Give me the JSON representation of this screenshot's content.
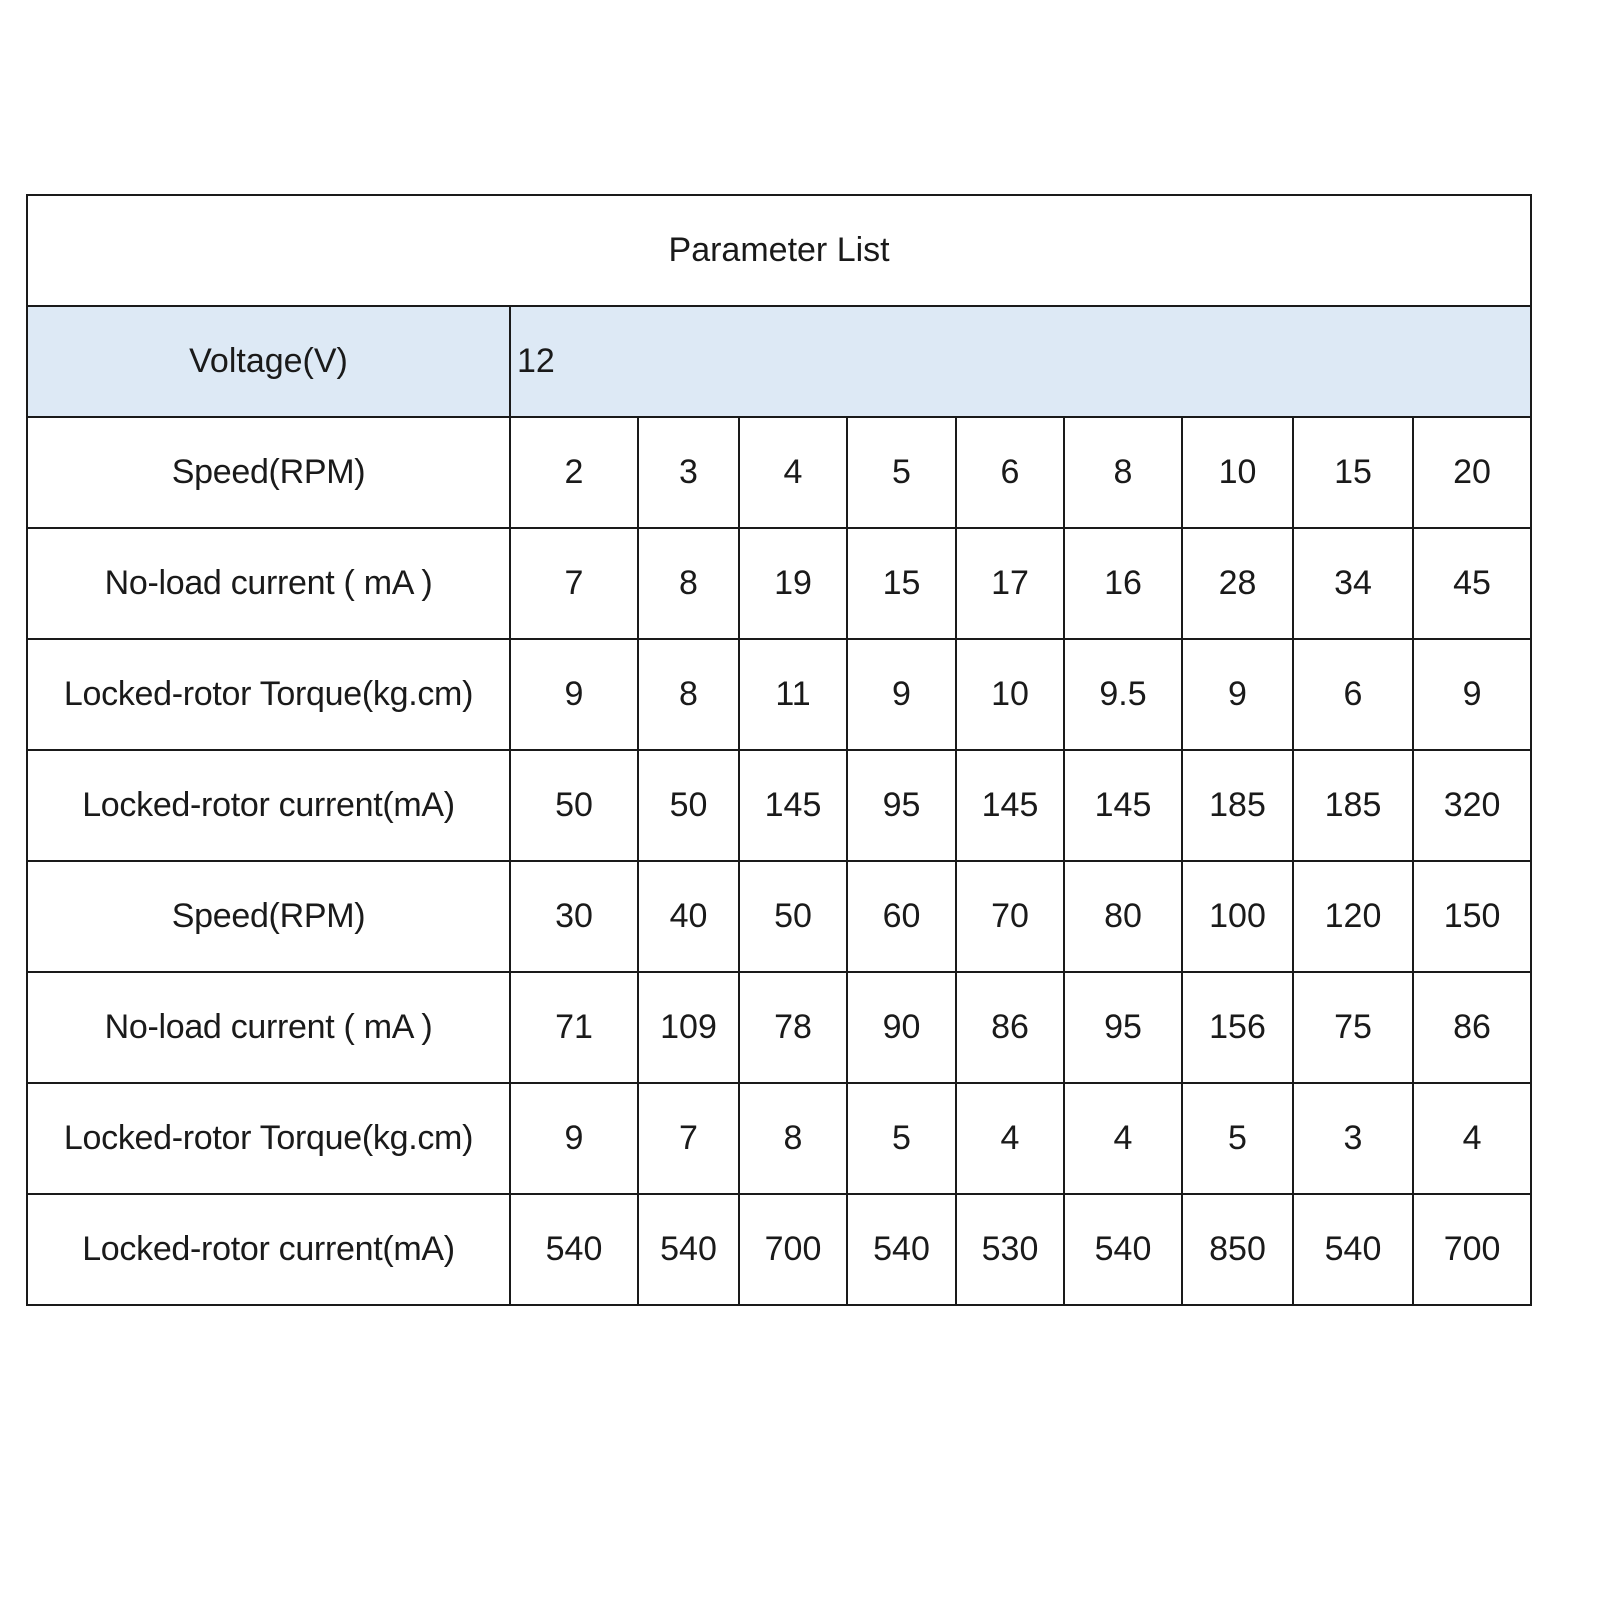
{
  "title": "Parameter List",
  "voltage": {
    "label": "Voltage(V)",
    "value": "12"
  },
  "header_color": "#dde9f5",
  "rows": [
    {
      "label": "Speed(RPM)",
      "values": [
        "2",
        "3",
        "4",
        "5",
        "6",
        "8",
        "10",
        "15",
        "20"
      ]
    },
    {
      "label": "No-load current ( mA )",
      "values": [
        "7",
        "8",
        "19",
        "15",
        "17",
        "16",
        "28",
        "34",
        "45"
      ]
    },
    {
      "label": "Locked-rotor Torque(kg.cm)",
      "values": [
        "9",
        "8",
        "11",
        "9",
        "10",
        "9.5",
        "9",
        "6",
        "9"
      ]
    },
    {
      "label": "Locked-rotor current(mA)",
      "values": [
        "50",
        "50",
        "145",
        "95",
        "145",
        "145",
        "185",
        "185",
        "320"
      ]
    },
    {
      "label": "Speed(RPM)",
      "values": [
        "30",
        "40",
        "50",
        "60",
        "70",
        "80",
        "100",
        "120",
        "150"
      ]
    },
    {
      "label": "No-load current ( mA )",
      "values": [
        "71",
        "109",
        "78",
        "90",
        "86",
        "95",
        "156",
        "75",
        "86"
      ]
    },
    {
      "label": "Locked-rotor Torque(kg.cm)",
      "values": [
        "9",
        "7",
        "8",
        "5",
        "4",
        "4",
        "5",
        "3",
        "4"
      ]
    },
    {
      "label": "Locked-rotor current(mA)",
      "values": [
        "540",
        "540",
        "700",
        "540",
        "530",
        "540",
        "850",
        "540",
        "700"
      ]
    }
  ]
}
